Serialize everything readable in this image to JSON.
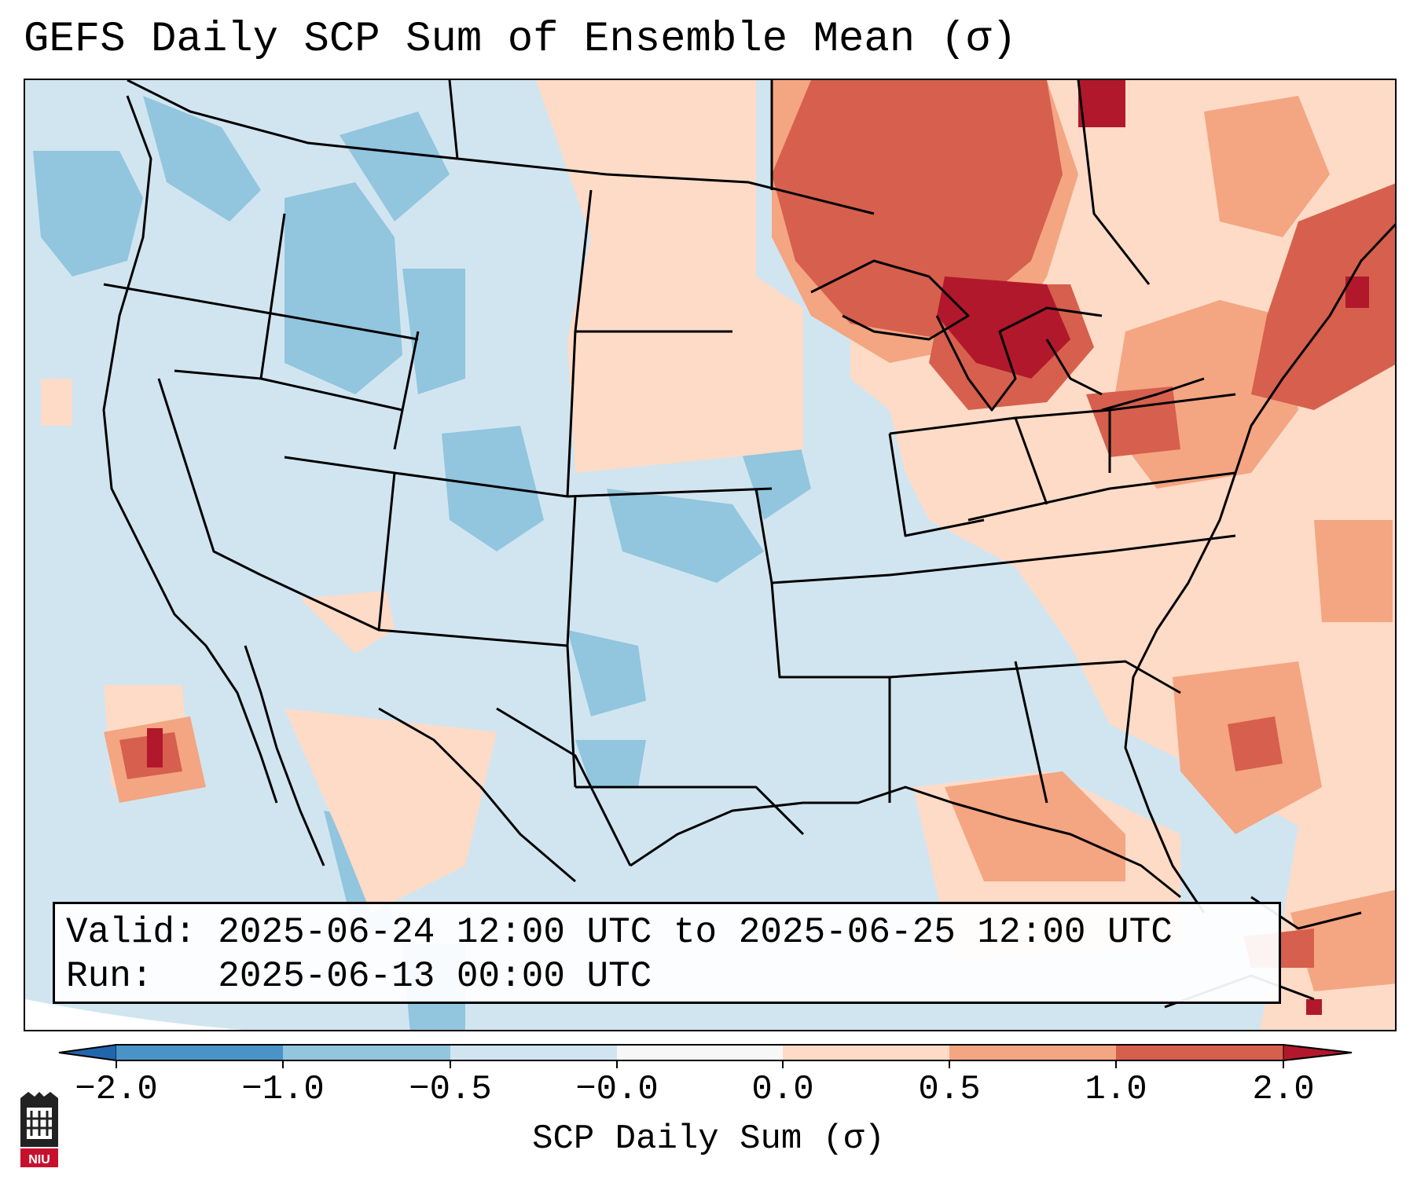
{
  "title": "GEFS Daily SCP Sum of Ensemble Mean (σ)",
  "info": {
    "valid_label": "Valid:",
    "valid_value": "2025-06-24 12:00 UTC to 2025-06-25 12:00 UTC",
    "run_label": "Run:",
    "run_value": "2025-06-13 00:00 UTC"
  },
  "colorbar": {
    "label": "SCP Daily Sum (σ)",
    "ticks": [
      "−2.0",
      "−1.0",
      "−0.5",
      "−0.0",
      "0.0",
      "0.5",
      "1.0",
      "2.0"
    ],
    "bins": [
      {
        "range": "-2.0 to -1.0",
        "color": "#4a93c6"
      },
      {
        "range": "-1.0 to -0.5",
        "color": "#92c5de"
      },
      {
        "range": "-0.5 to -0.0",
        "color": "#d1e5f0"
      },
      {
        "range": "-0.0 to 0.0",
        "color": "#f7f7f7"
      },
      {
        "range": "0.0 to 0.5",
        "color": "#fddbc7"
      },
      {
        "range": "0.5 to 1.0",
        "color": "#f4a582"
      },
      {
        "range": "1.0 to 2.0",
        "color": "#d6604d"
      }
    ],
    "under_color": "#2166ac",
    "over_color": "#b2182b"
  },
  "logo": {
    "text": "NIU"
  }
}
